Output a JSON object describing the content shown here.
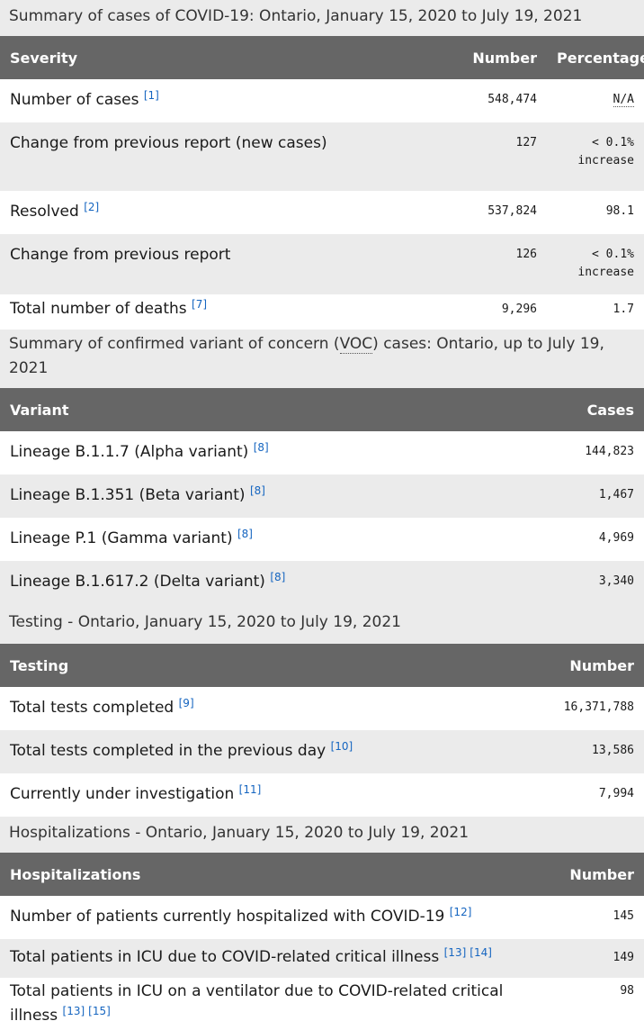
{
  "summary": {
    "caption": "Summary of cases of COVID-19: Ontario, January 15, 2020 to July 19, 2021",
    "headers": {
      "severity": "Severity",
      "number": "Number",
      "percentage": "Percentage"
    },
    "rows": [
      {
        "label": "Number of cases",
        "refs": [
          "[1]"
        ],
        "number": "548,474",
        "percentage": "N/A"
      },
      {
        "label": "Change from previous report (new cases)",
        "refs": [],
        "number": "127",
        "percentage": "< 0.1%",
        "percentage_note": "increase"
      },
      {
        "label": "Resolved",
        "refs": [
          "[2]"
        ],
        "number": "537,824",
        "percentage": "98.1"
      },
      {
        "label": "Change from previous report",
        "refs": [],
        "number": "126",
        "percentage": "< 0.1%",
        "percentage_note": "increase"
      },
      {
        "label": "Total number of deaths",
        "refs": [
          "[7]"
        ],
        "number": "9,296",
        "percentage": "1.7"
      }
    ]
  },
  "variants": {
    "caption_pre": "Summary of confirmed variant of concern (",
    "caption_abbr": "VOC",
    "caption_post": ") cases: Ontario, up to July 19, 2021",
    "headers": {
      "variant": "Variant",
      "cases": "Cases"
    },
    "rows": [
      {
        "label": "Lineage B.1.1.7 (Alpha variant)",
        "refs": [
          "[8]"
        ],
        "cases": "144,823"
      },
      {
        "label": "Lineage B.1.351 (Beta variant)",
        "refs": [
          "[8]"
        ],
        "cases": "1,467"
      },
      {
        "label": "Lineage P.1 (Gamma variant)",
        "refs": [
          "[8]"
        ],
        "cases": "4,969"
      },
      {
        "label": "Lineage B.1.617.2 (Delta variant)",
        "refs": [
          "[8]"
        ],
        "cases": "3,340"
      }
    ]
  },
  "testing": {
    "caption": "Testing - Ontario, January 15, 2020 to July 19, 2021",
    "headers": {
      "testing": "Testing",
      "number": "Number"
    },
    "rows": [
      {
        "label": "Total tests completed",
        "refs": [
          "[9]"
        ],
        "number": "16,371,788"
      },
      {
        "label": "Total tests completed in the previous day",
        "refs": [
          "[10]"
        ],
        "number": "13,586"
      },
      {
        "label": "Currently under investigation",
        "refs": [
          "[11]"
        ],
        "number": "7,994"
      }
    ]
  },
  "hospitalizations": {
    "caption": "Hospitalizations - Ontario, January 15, 2020 to July 19, 2021",
    "headers": {
      "hospitalizations": "Hospitalizations",
      "number": "Number"
    },
    "rows": [
      {
        "label": "Number of patients currently hospitalized with COVID-19",
        "refs": [
          "[12]"
        ],
        "number": "145"
      },
      {
        "label": "Total patients in ICU due to COVID-related critical illness",
        "refs": [
          "[13]",
          "[14]"
        ],
        "number": "149"
      },
      {
        "label": "Total patients in ICU on a ventilator due to COVID-related critical illness",
        "refs": [
          "[13]",
          "[15]"
        ],
        "number": "98"
      }
    ]
  }
}
